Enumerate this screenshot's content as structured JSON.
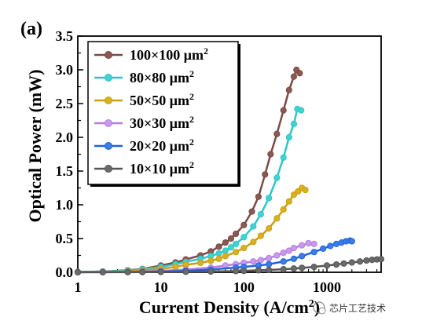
{
  "panel_label": "(a)",
  "watermark": "芯片工艺技术",
  "chart_data": {
    "type": "line",
    "xlabel": "Current Density (A/cm²)",
    "xlabel_parts": [
      "Current Density (A/cm",
      "2",
      ")"
    ],
    "ylabel": "Optical Power (mW)",
    "xscale": "log",
    "xlim": [
      1,
      4500
    ],
    "ylim": [
      0,
      3.5
    ],
    "xticks": [
      1,
      10,
      100,
      1000
    ],
    "xtick_labels": [
      "1",
      "10",
      "100",
      "1000"
    ],
    "yticks": [
      0,
      0.5,
      1,
      1.5,
      2,
      2.5,
      3,
      3.5
    ],
    "ytick_labels": [
      "0.0",
      "0.5",
      "1.0",
      "1.5",
      "2.0",
      "2.5",
      "3.0",
      "3.5"
    ],
    "grid": false,
    "legend_position": "top-left",
    "series": [
      {
        "name": "100×100 μm2",
        "name_base": "100×100 μm",
        "name_sup": "2",
        "color": "#7a4a44",
        "fill": "#8a5a52",
        "x": [
          1,
          2,
          4,
          6,
          10,
          15,
          20,
          30,
          40,
          50,
          60,
          70,
          80,
          100,
          125,
          150,
          180,
          210,
          250,
          300,
          350,
          400,
          430,
          470
        ],
        "y": [
          0.005,
          0.012,
          0.03,
          0.05,
          0.1,
          0.145,
          0.19,
          0.25,
          0.31,
          0.38,
          0.44,
          0.5,
          0.57,
          0.7,
          0.9,
          1.12,
          1.45,
          1.75,
          2.05,
          2.4,
          2.7,
          2.9,
          3.0,
          2.95
        ]
      },
      {
        "name": "80×80 μm2",
        "name_base": "80×80 μm",
        "name_sup": "2",
        "color": "#2fc6c6",
        "fill": "#3fd3d3",
        "x": [
          1,
          2,
          4,
          6,
          10,
          15,
          20,
          30,
          40,
          50,
          60,
          70,
          80,
          100,
          130,
          160,
          200,
          250,
          300,
          350,
          400,
          440,
          490
        ],
        "y": [
          0.005,
          0.01,
          0.025,
          0.045,
          0.08,
          0.12,
          0.155,
          0.2,
          0.24,
          0.28,
          0.32,
          0.37,
          0.42,
          0.52,
          0.68,
          0.86,
          1.1,
          1.4,
          1.7,
          2.0,
          2.2,
          2.42,
          2.4
        ]
      },
      {
        "name": "50×50 μm2",
        "name_base": "50×50 μm",
        "name_sup": "2",
        "color": "#c8a010",
        "fill": "#d8b020",
        "x": [
          1,
          2,
          4,
          6,
          10,
          15,
          20,
          30,
          40,
          50,
          60,
          80,
          100,
          130,
          160,
          200,
          250,
          300,
          350,
          400,
          450,
          500,
          550
        ],
        "y": [
          0.003,
          0.006,
          0.015,
          0.03,
          0.05,
          0.08,
          0.11,
          0.14,
          0.17,
          0.2,
          0.24,
          0.3,
          0.36,
          0.45,
          0.54,
          0.65,
          0.8,
          0.93,
          1.05,
          1.15,
          1.2,
          1.25,
          1.22
        ]
      },
      {
        "name": "30×30 μm2",
        "name_base": "30×30 μm",
        "name_sup": "2",
        "color": "#b47be0",
        "fill": "#c79af0",
        "x": [
          1,
          2,
          4,
          6,
          10,
          20,
          40,
          60,
          80,
          100,
          130,
          160,
          200,
          250,
          300,
          350,
          400,
          500,
          600,
          700
        ],
        "y": [
          0.002,
          0.004,
          0.008,
          0.012,
          0.02,
          0.04,
          0.07,
          0.1,
          0.12,
          0.14,
          0.16,
          0.18,
          0.21,
          0.25,
          0.29,
          0.32,
          0.36,
          0.4,
          0.43,
          0.42
        ]
      },
      {
        "name": "20×20 μm2",
        "name_base": "20×20 μm",
        "name_sup": "2",
        "color": "#1f63d8",
        "fill": "#3a7ce8",
        "x": [
          1,
          2,
          4,
          6,
          10,
          20,
          40,
          80,
          100,
          150,
          200,
          300,
          400,
          500,
          700,
          900,
          1100,
          1300,
          1500,
          1700,
          1900,
          2000
        ],
        "y": [
          0.001,
          0.002,
          0.004,
          0.006,
          0.01,
          0.02,
          0.04,
          0.07,
          0.08,
          0.1,
          0.12,
          0.16,
          0.2,
          0.24,
          0.3,
          0.35,
          0.39,
          0.42,
          0.44,
          0.46,
          0.47,
          0.46
        ]
      },
      {
        "name": "10×10 μm2",
        "name_base": "10×10 μm",
        "name_sup": "2",
        "color": "#555555",
        "fill": "#6a6a6a",
        "x": [
          1,
          2,
          4,
          6,
          10,
          20,
          40,
          80,
          100,
          150,
          200,
          300,
          400,
          500,
          700,
          1000,
          1300,
          1600,
          2000,
          2500,
          3000,
          3500,
          4000,
          4500
        ],
        "y": [
          0.001,
          0.001,
          0.002,
          0.003,
          0.005,
          0.008,
          0.012,
          0.018,
          0.02,
          0.03,
          0.035,
          0.045,
          0.055,
          0.065,
          0.08,
          0.1,
          0.115,
          0.13,
          0.145,
          0.16,
          0.175,
          0.185,
          0.19,
          0.195
        ]
      }
    ]
  }
}
